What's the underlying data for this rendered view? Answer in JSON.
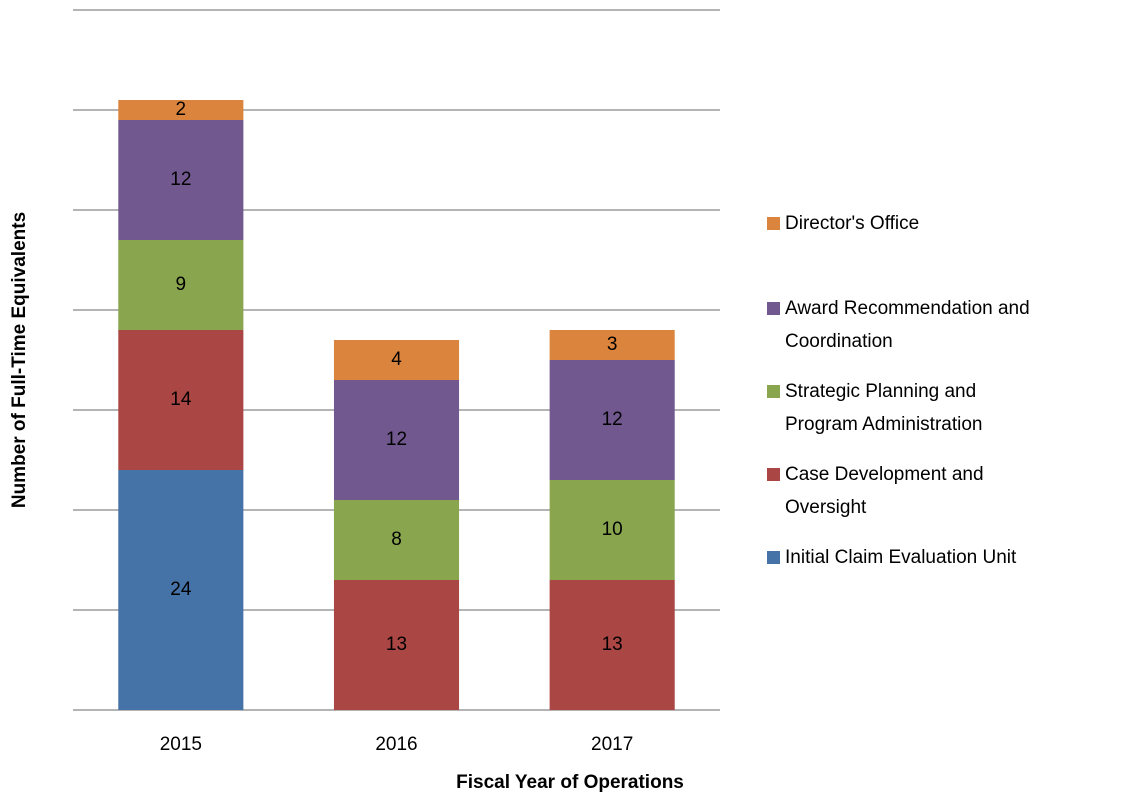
{
  "chart_data": {
    "type": "bar",
    "stacked": true,
    "x_label": "Fiscal Year of Operations",
    "y_label": "Number of Full-Time Equivalents",
    "categories": [
      "2015",
      "2016",
      "2017"
    ],
    "series": [
      {
        "name": "Initial Claim Evaluation Unit",
        "color": "#4572a7",
        "values": [
          24,
          null,
          null
        ]
      },
      {
        "name": "Case Development and Oversight",
        "color": "#aa4643",
        "values": [
          14,
          13,
          13
        ]
      },
      {
        "name": "Strategic Planning and Program Administration",
        "color": "#89a54e",
        "values": [
          9,
          8,
          10
        ]
      },
      {
        "name": "Award Recommendation and Coordination",
        "color": "#71588f",
        "values": [
          12,
          12,
          12
        ]
      },
      {
        "name": "Director's Office",
        "color": "#db843d",
        "values": [
          2,
          4,
          3
        ]
      }
    ],
    "ylim": [
      0,
      70
    ],
    "yticks": [
      0,
      10,
      20,
      30,
      40,
      50,
      60,
      70
    ],
    "grid": true,
    "legend": "right"
  }
}
